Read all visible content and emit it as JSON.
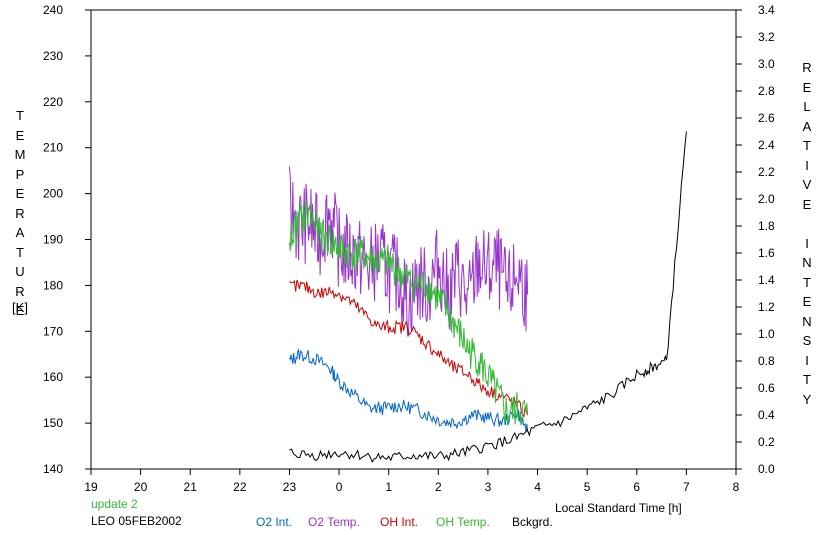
{
  "chart_data": {
    "type": "line",
    "ylabel_left": "TEMPERATURE",
    "ylabel_left_unit": "[K]",
    "ylabel_right": "RELATIVE INTENSITY",
    "xlabel": "Local Standard Time [h]",
    "x_ticks": [
      "19",
      "20",
      "21",
      "22",
      "23",
      "0",
      "1",
      "2",
      "3",
      "4",
      "5",
      "6",
      "7",
      "8"
    ],
    "y_left_ticks": [
      "240",
      "230",
      "220",
      "210",
      "200",
      "190",
      "180",
      "170",
      "160",
      "150",
      "140"
    ],
    "y_right_ticks": [
      "3.4",
      "3.2",
      "3.0",
      "2.8",
      "2.6",
      "2.4",
      "2.2",
      "2.0",
      "1.8",
      "1.6",
      "1.4",
      "1.2",
      "1.0",
      "0.8",
      "0.6",
      "0.4",
      "0.2",
      "0.0"
    ],
    "x_range_hours": [
      19,
      32
    ],
    "y_left_range": [
      140,
      240
    ],
    "y_right_range": [
      0,
      3.4
    ],
    "grid": false,
    "series": [
      {
        "name": "O2 Int.",
        "color": "#0066cc",
        "axis": "right",
        "x": [
          23.0,
          23.2,
          23.5,
          23.8,
          24.0,
          24.3,
          24.6,
          24.9,
          25.2,
          25.5,
          25.8,
          26.1,
          26.4,
          26.7,
          27.0,
          27.3,
          27.6,
          27.8
        ],
        "y": [
          0.8,
          0.85,
          0.82,
          0.75,
          0.65,
          0.55,
          0.45,
          0.45,
          0.47,
          0.45,
          0.4,
          0.35,
          0.35,
          0.4,
          0.38,
          0.35,
          0.42,
          0.28
        ]
      },
      {
        "name": "O2 Temp.",
        "color": "#9933cc",
        "axis": "left",
        "x": [
          23.0,
          23.2,
          23.4,
          23.6,
          23.8,
          24.0,
          24.2,
          24.4,
          24.6,
          24.8,
          25.0,
          25.2,
          25.4,
          25.6,
          25.8,
          26.0,
          26.2,
          26.4,
          26.6,
          26.8,
          27.0,
          27.2,
          27.4,
          27.6,
          27.8
        ],
        "y": [
          197,
          193,
          194,
          190,
          196,
          188,
          187,
          186,
          184,
          186,
          183,
          182,
          176,
          181,
          179,
          185,
          178,
          183,
          176,
          185,
          183,
          184,
          178,
          183,
          178
        ]
      },
      {
        "name": "OH Int.",
        "color": "#cc0000",
        "axis": "right",
        "x": [
          23.0,
          23.3,
          23.6,
          23.9,
          24.2,
          24.5,
          24.8,
          25.1,
          25.4,
          25.7,
          26.0,
          26.3,
          26.6,
          26.9,
          27.2,
          27.5,
          27.8
        ],
        "y": [
          1.35,
          1.35,
          1.3,
          1.32,
          1.25,
          1.15,
          1.05,
          1.05,
          1.05,
          0.95,
          0.85,
          0.75,
          0.7,
          0.6,
          0.55,
          0.5,
          0.4
        ]
      },
      {
        "name": "OH Temp.",
        "color": "#33bb33",
        "axis": "left",
        "x": [
          23.0,
          23.2,
          23.4,
          23.6,
          23.8,
          24.0,
          24.2,
          24.4,
          24.6,
          24.8,
          25.0,
          25.2,
          25.4,
          25.6,
          25.8,
          26.0,
          26.2,
          26.4,
          26.6,
          26.8,
          27.0,
          27.2,
          27.4,
          27.6,
          27.8
        ],
        "y": [
          190,
          194,
          196,
          191,
          190,
          188,
          187,
          187,
          186,
          185,
          185,
          183,
          181,
          180,
          180,
          177,
          174,
          170,
          166,
          164,
          160,
          156,
          152,
          153,
          152
        ]
      },
      {
        "name": "Bckgrd.",
        "color": "#000000",
        "axis": "right",
        "x": [
          23.0,
          23.5,
          24.0,
          24.5,
          25.0,
          25.5,
          26.0,
          26.5,
          27.0,
          27.5,
          28.0,
          28.5,
          29.0,
          29.5,
          30.0,
          30.3,
          30.6,
          31.0
        ],
        "y": [
          0.12,
          0.1,
          0.12,
          0.1,
          0.08,
          0.1,
          0.09,
          0.12,
          0.17,
          0.22,
          0.3,
          0.35,
          0.45,
          0.55,
          0.7,
          0.75,
          0.8,
          2.5
        ]
      }
    ]
  },
  "footer": {
    "update_text": "update 2",
    "station_date": "LEO 05FEB2002"
  }
}
